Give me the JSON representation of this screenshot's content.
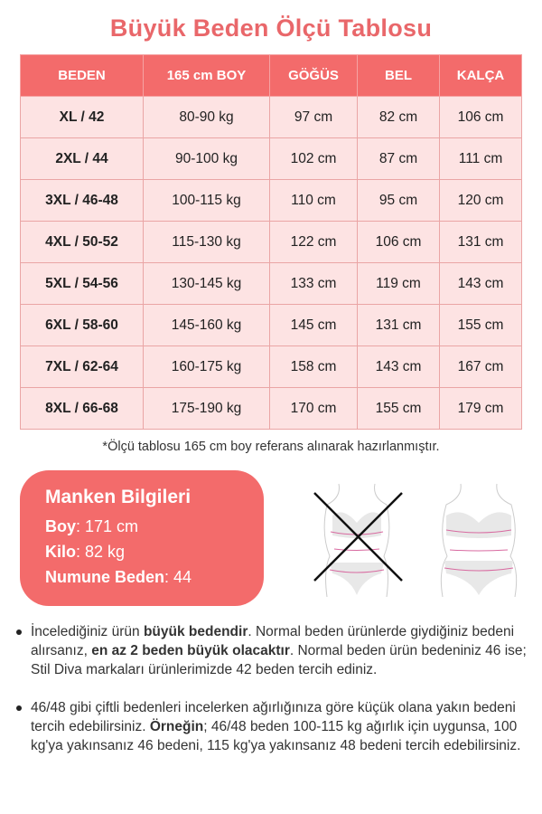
{
  "title": "Büyük Beden Ölçü Tablosu",
  "table": {
    "headers": [
      "BEDEN",
      "165 cm BOY",
      "GÖĞÜS",
      "BEL",
      "KALÇA"
    ],
    "rows": [
      [
        "XL / 42",
        "80-90 kg",
        "97 cm",
        "82 cm",
        "106 cm"
      ],
      [
        "2XL / 44",
        "90-100 kg",
        "102 cm",
        "87 cm",
        "111 cm"
      ],
      [
        "3XL / 46-48",
        "100-115 kg",
        "110 cm",
        "95 cm",
        "120 cm"
      ],
      [
        "4XL / 50-52",
        "115-130 kg",
        "122 cm",
        "106 cm",
        "131 cm"
      ],
      [
        "5XL / 54-56",
        "130-145 kg",
        "133 cm",
        "119 cm",
        "143 cm"
      ],
      [
        "6XL / 58-60",
        "145-160 kg",
        "145 cm",
        "131 cm",
        "155 cm"
      ],
      [
        "7XL / 62-64",
        "160-175 kg",
        "158 cm",
        "143 cm",
        "167 cm"
      ],
      [
        "8XL / 66-68",
        "175-190 kg",
        "170 cm",
        "155 cm",
        "179 cm"
      ]
    ]
  },
  "note": "*Ölçü tablosu 165 cm boy referans alınarak hazırlanmıştır.",
  "model": {
    "title": "Manken Bilgileri",
    "boy_label": "Boy",
    "boy_value": ": 171 cm",
    "kilo_label": "Kilo",
    "kilo_value": ": 82 kg",
    "beden_label": "Numune Beden",
    "beden_value": ": 44"
  },
  "figures": {
    "wrong": "crossed-out-body-figure",
    "right": "plus-size-body-figure"
  },
  "bullets": [
    {
      "t1": "İncelediğiniz ürün ",
      "b1": "büyük bedendir",
      "t2": ". Normal beden ürünlerde giydiğiniz bedeni alırsanız, ",
      "b2": "en az 2 beden büyük olacaktır",
      "t3": ". Normal beden ürün bedeniniz 46 ise; Stil Diva markaları ürünlerimizde 42 beden tercih ediniz."
    },
    {
      "t1": "46/48 gibi çiftli bedenleri incelerken ağırlığınıza göre küçük olana yakın bedeni tercih edebilirsiniz. ",
      "b1": "Örneğin",
      "t2": "; 46/48 beden 100-115 kg ağırlık için uygunsa, 100 kg'ya yakınsanız 46 bedeni, 115 kg'ya yakınsanız 48 bedeni tercih edebilirsiniz."
    }
  ],
  "colors": {
    "accent": "#f36b6b",
    "row": "#fde3e3",
    "title": "#e9676a"
  }
}
